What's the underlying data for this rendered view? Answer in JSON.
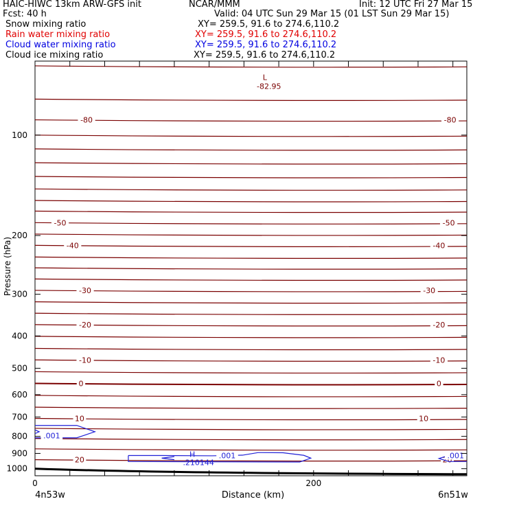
{
  "header": {
    "title_left": "HAIC-HIWC 13km ARW-GFS init",
    "org": "NCAR/MMM",
    "init": "Init: 12 UTC Fri 27 Mar 15",
    "fcst": "Fcst:   40 h",
    "valid": "Valid: 04 UTC Sun 29 Mar 15 (01 LST Sun 29 Mar 15)"
  },
  "fields": [
    {
      "name": "Snow mixing ratio",
      "xy": "XY= 259.5, 91.6 to 274.6,110.2",
      "color": "#000000"
    },
    {
      "name": "Rain water mixing ratio",
      "xy": "XY= 259.5, 91.6 to 274.6,110.2",
      "color": "#e00000"
    },
    {
      "name": "Cloud water mixing ratio",
      "xy": "XY= 259.5, 91.6 to 274.6,110.2",
      "color": "#0000e0"
    },
    {
      "name": "Cloud ice mixing ratio",
      "xy": "XY= 259.5, 91.6 to 274.6,110.2",
      "color": "#000000"
    }
  ],
  "chart_data": {
    "type": "contour",
    "xlabel": "Distance (km)",
    "ylabel": "Pressure (hPa)",
    "xlim": [
      0,
      310
    ],
    "ylim": [
      1050,
      60
    ],
    "y_scale": "log",
    "x_ticks": [
      "0",
      "200"
    ],
    "y_ticks": [
      "100",
      "200",
      "300",
      "400",
      "500",
      "600",
      "700",
      "800",
      "900",
      "1000"
    ],
    "endpoint_labels": {
      "left": "4n53w",
      "right": "6n51w"
    },
    "colors": {
      "temperature": "#7a0000",
      "cloud_water": "#1f1fd6",
      "axes": "#000000"
    },
    "isotherm_labels": [
      "-80",
      "-50",
      "-40",
      "-30",
      "-20",
      "-10",
      "0",
      "10",
      "20"
    ],
    "extremum_low": {
      "symbol": "L",
      "value": "-82.95",
      "x": 165,
      "p": 67
    },
    "cloud_labels": [
      {
        "text": ".001",
        "x": 12,
        "p": 795
      },
      {
        "text": ".001",
        "x": 138,
        "p": 914
      },
      {
        "text": ".001",
        "x": 302,
        "p": 913
      }
    ],
    "cloud_max": {
      "symbol": "H",
      "value": ".210144",
      "x": 110,
      "p": 930
    }
  }
}
